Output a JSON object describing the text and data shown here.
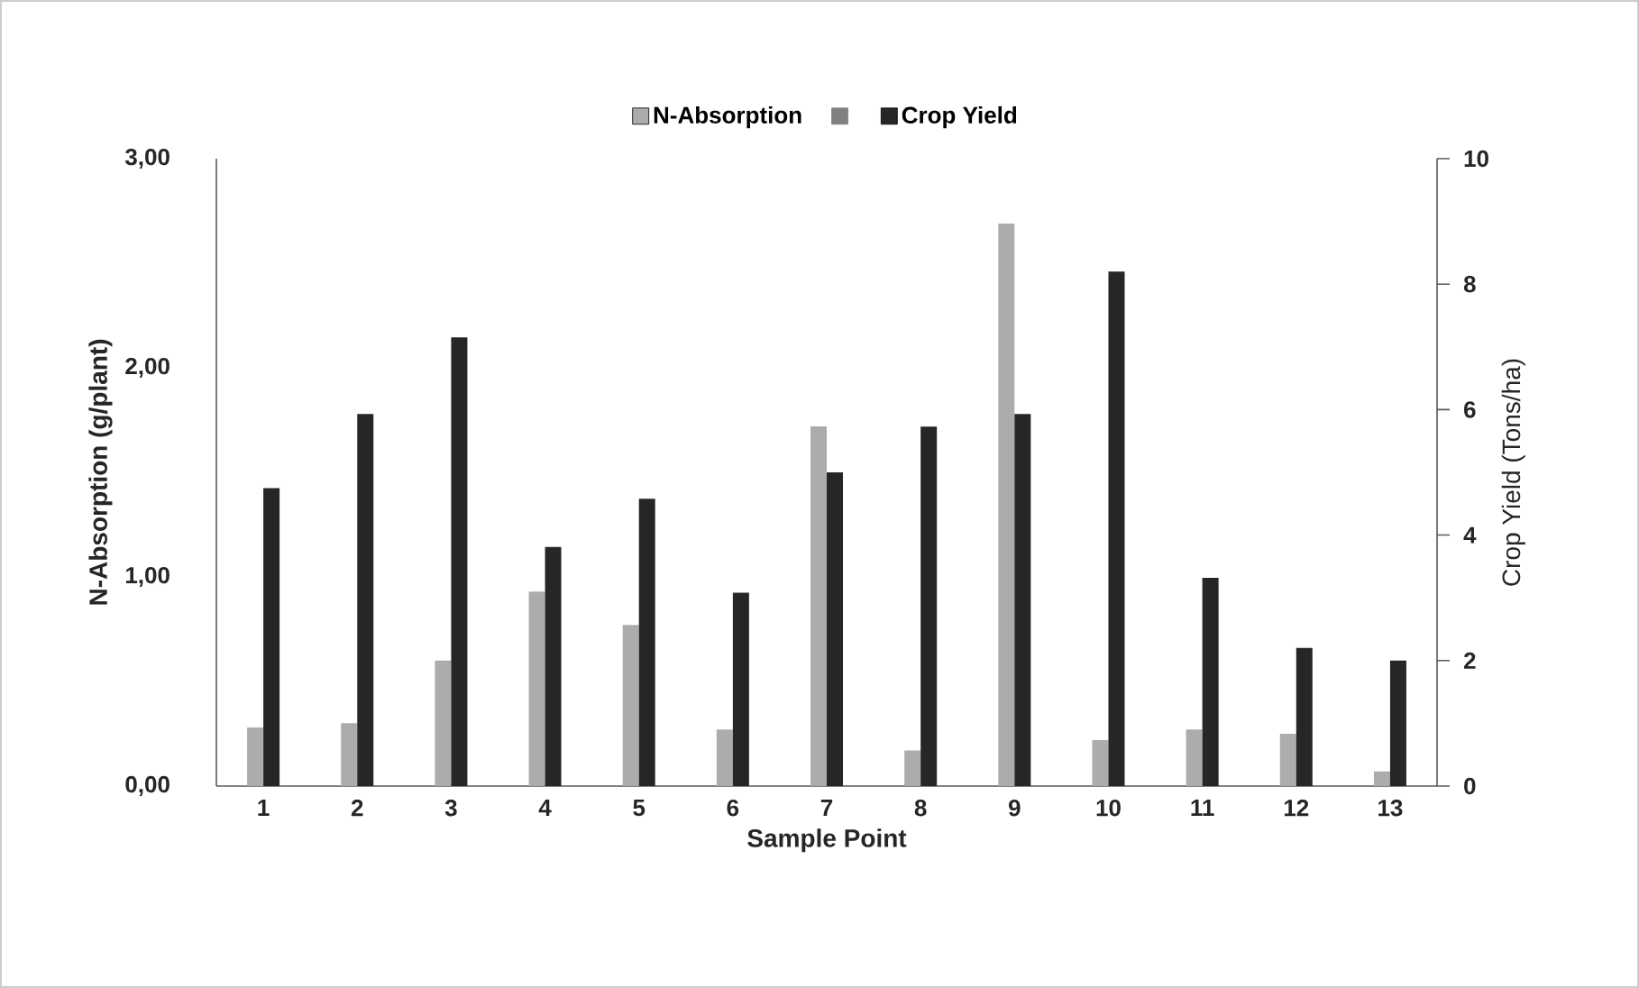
{
  "chart_data": {
    "type": "bar",
    "xlabel": "Sample Point",
    "ylabel": "N-Absorption (g/plant)",
    "y2label": "Crop Yield (Tons/ha)",
    "categories": [
      "1",
      "2",
      "3",
      "4",
      "5",
      "6",
      "7",
      "8",
      "9",
      "10",
      "11",
      "12",
      "13"
    ],
    "series": [
      {
        "name": "N-Absorption",
        "color": "#acacac",
        "values": [
          0.28,
          0.3,
          0.6,
          0.93,
          0.77,
          0.27,
          1.72,
          0.17,
          2.69,
          0.22,
          0.27,
          0.25,
          0.07
        ]
      },
      {
        "color": "#808080",
        "values": [
          null,
          null,
          null,
          null,
          null,
          null,
          null,
          null,
          null,
          null,
          null,
          null,
          null
        ]
      },
      {
        "name": "Crop Yield",
        "color": "#262626",
        "axis": "y2",
        "values": [
          4.75,
          5.93,
          7.15,
          3.81,
          4.58,
          3.08,
          5.0,
          5.73,
          5.93,
          8.2,
          3.32,
          2.2,
          2.0
        ]
      }
    ],
    "ylim": [
      0,
      3
    ],
    "yticks": [
      {
        "value": 0,
        "label": "0,00"
      },
      {
        "value": 1,
        "label": "1,00"
      },
      {
        "value": 2,
        "label": "2,00"
      },
      {
        "value": 3,
        "label": "3,00"
      }
    ],
    "y2lim": [
      0,
      10
    ],
    "y2ticks": [
      0,
      2,
      4,
      6,
      8,
      10
    ],
    "legend": "top",
    "grid": false
  }
}
